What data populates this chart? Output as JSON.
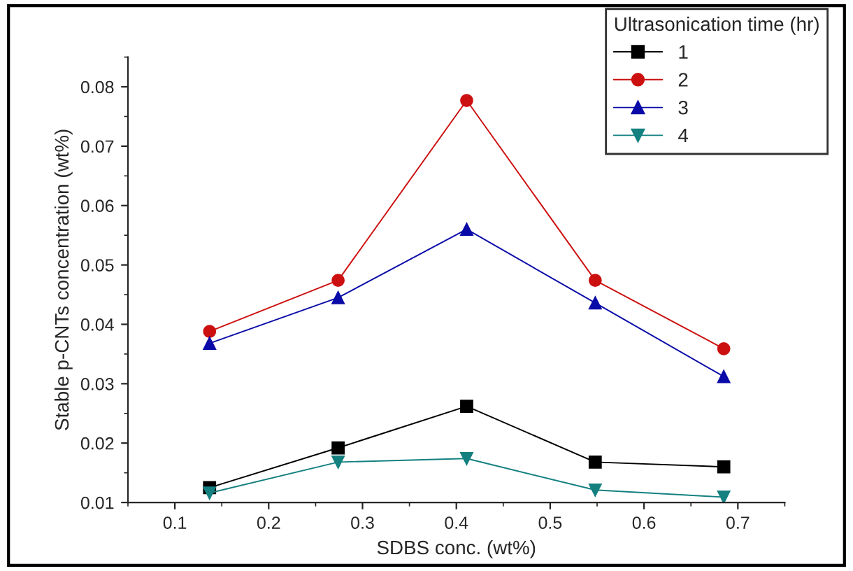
{
  "chart_data": {
    "type": "line",
    "xlabel": "SDBS conc. (wt%)",
    "ylabel": "Stable p-CNTs concentration (wt%)",
    "legend_title": "Ultrasonication time (hr)",
    "x": [
      0.137,
      0.274,
      0.411,
      0.548,
      0.685
    ],
    "series": [
      {
        "name": "1",
        "color": "#000000",
        "marker": "square",
        "values": [
          0.0125,
          0.0192,
          0.0262,
          0.0168,
          0.016
        ]
      },
      {
        "name": "2",
        "color": "#cc1010",
        "marker": "circle",
        "values": [
          0.0388,
          0.0474,
          0.0777,
          0.0474,
          0.0359
        ]
      },
      {
        "name": "3",
        "color": "#0a0aa8",
        "marker": "triangle",
        "values": [
          0.0368,
          0.0445,
          0.056,
          0.0436,
          0.0312
        ]
      },
      {
        "name": "4",
        "color": "#148080",
        "marker": "triangle_down",
        "values": [
          0.0116,
          0.0168,
          0.0174,
          0.0121,
          0.0109
        ]
      }
    ],
    "xlim": [
      0.05,
      0.75
    ],
    "xticks": [
      0.1,
      0.2,
      0.3,
      0.4,
      0.5,
      0.6,
      0.7
    ],
    "ylim": [
      0.01,
      0.085
    ],
    "yticks": [
      0.01,
      0.02,
      0.03,
      0.04,
      0.05,
      0.06,
      0.07,
      0.08
    ],
    "grid": false,
    "legend": "top right",
    "line_style": "solid"
  }
}
